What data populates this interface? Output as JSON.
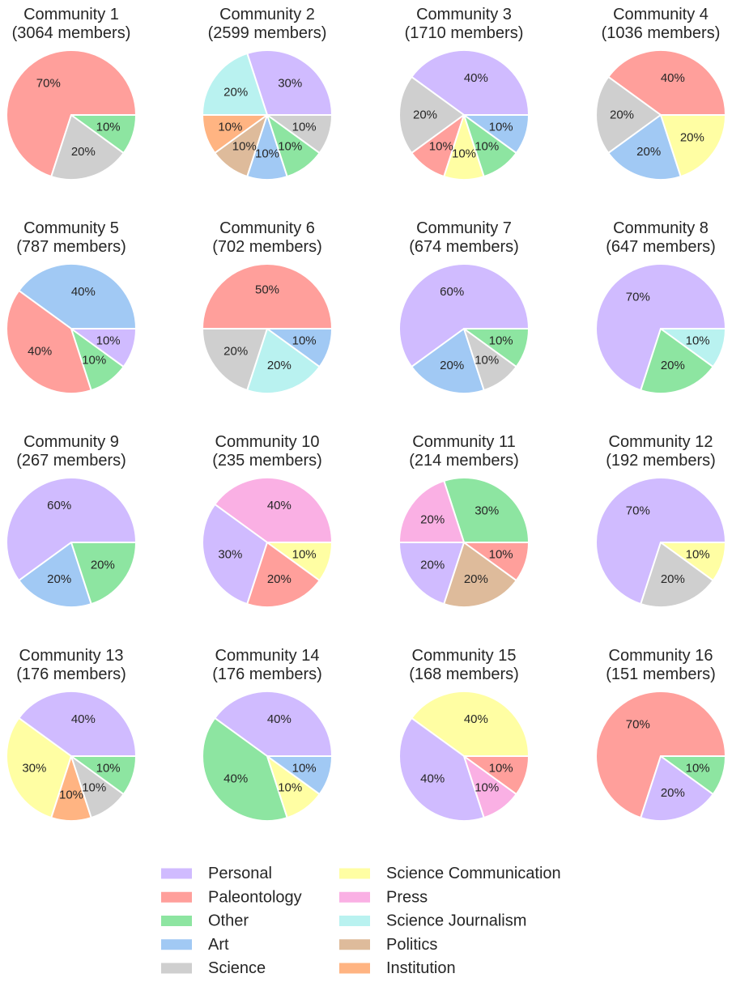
{
  "chart_data": {
    "type": "pie",
    "layout": "4x4 grid of pie charts with shared legend at bottom",
    "categories": [
      "Personal",
      "Paleontology",
      "Other",
      "Art",
      "Science",
      "Science Communication",
      "Press",
      "Science Journalism",
      "Politics",
      "Institution"
    ],
    "colors": {
      "Personal": "#d0bbff",
      "Paleontology": "#ff9f9b",
      "Other": "#8de5a1",
      "Art": "#a1c9f4",
      "Science": "#cfcfcf",
      "Science Communication": "#fffea3",
      "Press": "#fab0e4",
      "Science Journalism": "#b9f2f0",
      "Politics": "#debb9b",
      "Institution": "#ffb482"
    },
    "start_angle_deg": 0,
    "direction": "counterclockwise",
    "label_format": "{value}%",
    "legend": {
      "placement": "bottom-center",
      "columns": 2,
      "entries": [
        "Personal",
        "Paleontology",
        "Other",
        "Art",
        "Science",
        "Science Communication",
        "Press",
        "Science Journalism",
        "Politics",
        "Institution"
      ]
    },
    "pies": [
      {
        "title": "Community 1",
        "subtitle": "(3064 members)",
        "slices": [
          {
            "category": "Paleontology",
            "value": 70
          },
          {
            "category": "Science",
            "value": 20
          },
          {
            "category": "Other",
            "value": 10
          }
        ]
      },
      {
        "title": "Community 2",
        "subtitle": "(2599 members)",
        "slices": [
          {
            "category": "Personal",
            "value": 30
          },
          {
            "category": "Science Journalism",
            "value": 20
          },
          {
            "category": "Institution",
            "value": 10
          },
          {
            "category": "Politics",
            "value": 10
          },
          {
            "category": "Art",
            "value": 10
          },
          {
            "category": "Other",
            "value": 10
          },
          {
            "category": "Science",
            "value": 10
          }
        ]
      },
      {
        "title": "Community 3",
        "subtitle": "(1710 members)",
        "slices": [
          {
            "category": "Personal",
            "value": 40
          },
          {
            "category": "Science",
            "value": 20
          },
          {
            "category": "Paleontology",
            "value": 10
          },
          {
            "category": "Science Communication",
            "value": 10
          },
          {
            "category": "Other",
            "value": 10
          },
          {
            "category": "Art",
            "value": 10
          }
        ]
      },
      {
        "title": "Community 4",
        "subtitle": "(1036 members)",
        "slices": [
          {
            "category": "Paleontology",
            "value": 40
          },
          {
            "category": "Science",
            "value": 20
          },
          {
            "category": "Art",
            "value": 20
          },
          {
            "category": "Science Communication",
            "value": 20
          }
        ]
      },
      {
        "title": "Community 5",
        "subtitle": "(787 members)",
        "slices": [
          {
            "category": "Art",
            "value": 40
          },
          {
            "category": "Paleontology",
            "value": 40
          },
          {
            "category": "Other",
            "value": 10
          },
          {
            "category": "Personal",
            "value": 10
          }
        ]
      },
      {
        "title": "Community 6",
        "subtitle": "(702 members)",
        "slices": [
          {
            "category": "Paleontology",
            "value": 50
          },
          {
            "category": "Science",
            "value": 20
          },
          {
            "category": "Science Journalism",
            "value": 20
          },
          {
            "category": "Art",
            "value": 10
          }
        ]
      },
      {
        "title": "Community 7",
        "subtitle": "(674 members)",
        "slices": [
          {
            "category": "Personal",
            "value": 60
          },
          {
            "category": "Art",
            "value": 20
          },
          {
            "category": "Science",
            "value": 10
          },
          {
            "category": "Other",
            "value": 10
          }
        ]
      },
      {
        "title": "Community 8",
        "subtitle": "(647 members)",
        "slices": [
          {
            "category": "Personal",
            "value": 70
          },
          {
            "category": "Other",
            "value": 20
          },
          {
            "category": "Science Journalism",
            "value": 10
          }
        ]
      },
      {
        "title": "Community 9",
        "subtitle": "(267 members)",
        "slices": [
          {
            "category": "Personal",
            "value": 60
          },
          {
            "category": "Art",
            "value": 20
          },
          {
            "category": "Other",
            "value": 20
          }
        ]
      },
      {
        "title": "Community 10",
        "subtitle": "(235 members)",
        "slices": [
          {
            "category": "Press",
            "value": 40
          },
          {
            "category": "Personal",
            "value": 30
          },
          {
            "category": "Paleontology",
            "value": 20
          },
          {
            "category": "Science Communication",
            "value": 10
          }
        ]
      },
      {
        "title": "Community 11",
        "subtitle": "(214 members)",
        "slices": [
          {
            "category": "Other",
            "value": 30
          },
          {
            "category": "Press",
            "value": 20
          },
          {
            "category": "Personal",
            "value": 20
          },
          {
            "category": "Politics",
            "value": 20
          },
          {
            "category": "Paleontology",
            "value": 10
          }
        ]
      },
      {
        "title": "Community 12",
        "subtitle": "(192 members)",
        "slices": [
          {
            "category": "Personal",
            "value": 70
          },
          {
            "category": "Science",
            "value": 20
          },
          {
            "category": "Science Communication",
            "value": 10
          }
        ]
      },
      {
        "title": "Community 13",
        "subtitle": "(176 members)",
        "slices": [
          {
            "category": "Personal",
            "value": 40
          },
          {
            "category": "Science Communication",
            "value": 30
          },
          {
            "category": "Institution",
            "value": 10
          },
          {
            "category": "Science",
            "value": 10
          },
          {
            "category": "Other",
            "value": 10
          }
        ]
      },
      {
        "title": "Community 14",
        "subtitle": "(176 members)",
        "slices": [
          {
            "category": "Personal",
            "value": 40
          },
          {
            "category": "Other",
            "value": 40
          },
          {
            "category": "Science Communication",
            "value": 10
          },
          {
            "category": "Art",
            "value": 10
          }
        ]
      },
      {
        "title": "Community 15",
        "subtitle": "(168 members)",
        "slices": [
          {
            "category": "Science Communication",
            "value": 40
          },
          {
            "category": "Personal",
            "value": 40
          },
          {
            "category": "Press",
            "value": 10
          },
          {
            "category": "Paleontology",
            "value": 10
          }
        ]
      },
      {
        "title": "Community 16",
        "subtitle": "(151 members)",
        "slices": [
          {
            "category": "Paleontology",
            "value": 70
          },
          {
            "category": "Personal",
            "value": 20
          },
          {
            "category": "Other",
            "value": 10
          }
        ]
      }
    ]
  }
}
